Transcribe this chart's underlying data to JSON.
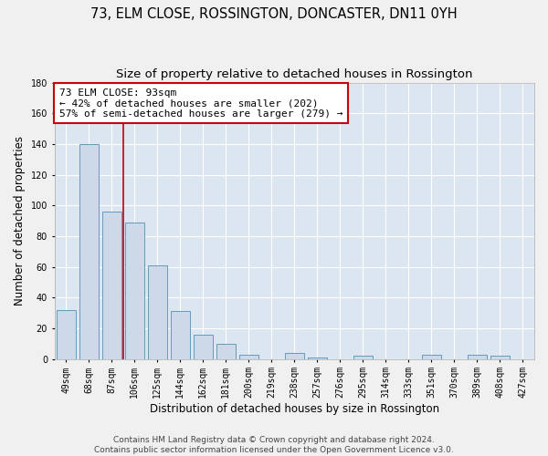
{
  "title": "73, ELM CLOSE, ROSSINGTON, DONCASTER, DN11 0YH",
  "subtitle": "Size of property relative to detached houses in Rossington",
  "xlabel": "Distribution of detached houses by size in Rossington",
  "ylabel": "Number of detached properties",
  "bins": [
    "49sqm",
    "68sqm",
    "87sqm",
    "106sqm",
    "125sqm",
    "144sqm",
    "162sqm",
    "181sqm",
    "200sqm",
    "219sqm",
    "238sqm",
    "257sqm",
    "276sqm",
    "295sqm",
    "314sqm",
    "333sqm",
    "351sqm",
    "370sqm",
    "389sqm",
    "408sqm",
    "427sqm"
  ],
  "values": [
    32,
    140,
    96,
    89,
    61,
    31,
    16,
    10,
    3,
    0,
    4,
    1,
    0,
    2,
    0,
    0,
    3,
    0,
    3,
    2,
    0
  ],
  "bar_color": "#ccd9e8",
  "bar_edge_color": "#6699bb",
  "subject_line_color": "#cc0000",
  "annotation_text": "73 ELM CLOSE: 93sqm\n← 42% of detached houses are smaller (202)\n57% of semi-detached houses are larger (279) →",
  "annotation_box_color": "#ffffff",
  "annotation_box_edge_color": "#cc0000",
  "ylim": [
    0,
    180
  ],
  "yticks": [
    0,
    20,
    40,
    60,
    80,
    100,
    120,
    140,
    160,
    180
  ],
  "plot_bg_color": "#dce6f0",
  "fig_bg_color": "#f0f0f0",
  "footer_text": "Contains HM Land Registry data © Crown copyright and database right 2024.\nContains public sector information licensed under the Open Government Licence v3.0.",
  "title_fontsize": 10.5,
  "subtitle_fontsize": 9.5,
  "xlabel_fontsize": 8.5,
  "ylabel_fontsize": 8.5,
  "tick_fontsize": 7,
  "annotation_fontsize": 8,
  "footer_fontsize": 6.5
}
